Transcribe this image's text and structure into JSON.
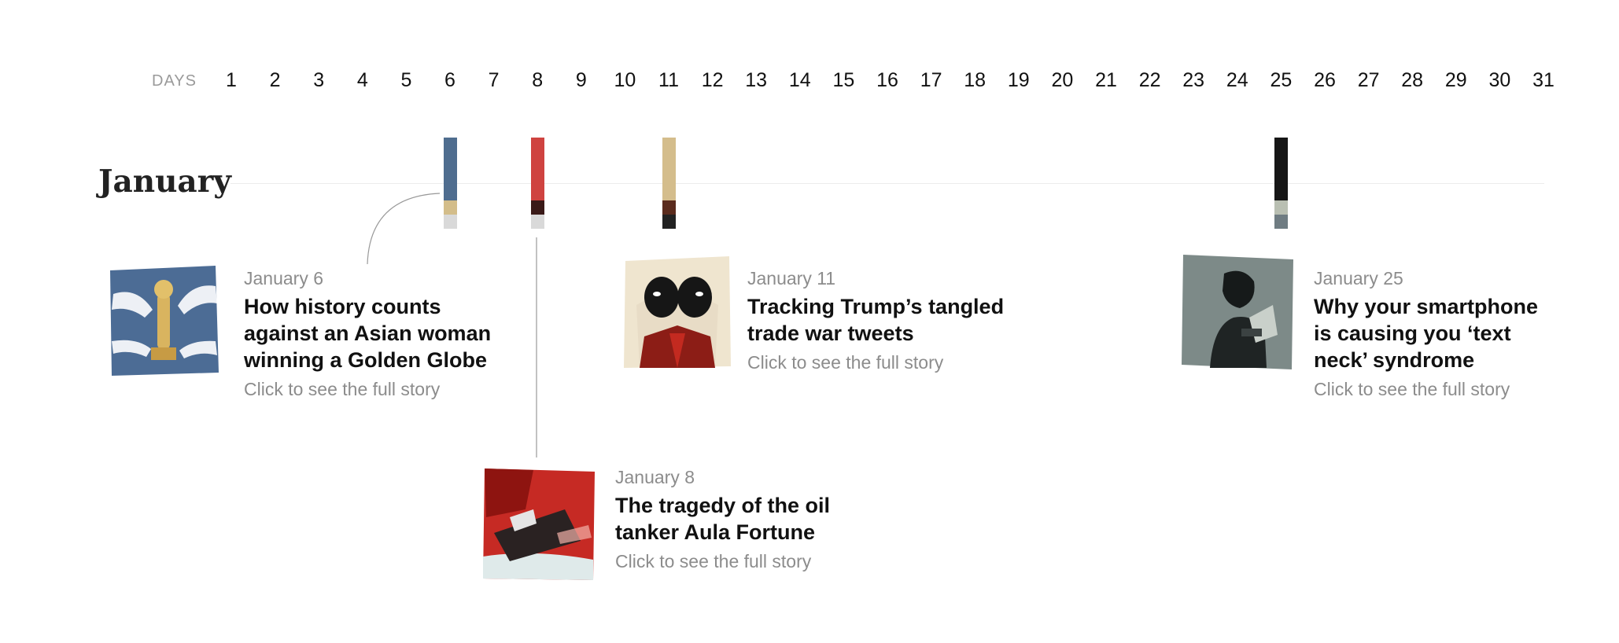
{
  "axis": {
    "label": "DAYS",
    "days": [
      "1",
      "2",
      "3",
      "4",
      "5",
      "6",
      "7",
      "8",
      "9",
      "10",
      "11",
      "12",
      "13",
      "14",
      "15",
      "16",
      "17",
      "18",
      "19",
      "20",
      "21",
      "22",
      "23",
      "24",
      "25",
      "26",
      "27",
      "28",
      "29",
      "30",
      "31"
    ]
  },
  "month": "January",
  "markers": [
    {
      "day": 6,
      "colors": [
        "#4f6d8f",
        "#d3bd8a",
        "#d9d9d9"
      ],
      "weights": [
        80,
        18,
        18
      ]
    },
    {
      "day": 8,
      "colors": [
        "#cf4340",
        "#3a1a18",
        "#d9d9d9"
      ],
      "weights": [
        80,
        18,
        18
      ]
    },
    {
      "day": 11,
      "colors": [
        "#d4bd8c",
        "#5a2b1d",
        "#222222"
      ],
      "weights": [
        80,
        18,
        18
      ]
    },
    {
      "day": 25,
      "colors": [
        "#161616",
        "#b9bfb2",
        "#6f7c82"
      ],
      "weights": [
        80,
        18,
        18
      ]
    }
  ],
  "stories": [
    {
      "date": "January 6",
      "title_lines": [
        "How history counts",
        "against an Asian woman",
        "winning a Golden Globe"
      ],
      "link": "Click to see the full story",
      "thumb": "golden-globe-illustration"
    },
    {
      "date": "January 8",
      "title_lines": [
        "The tragedy of the oil",
        "tanker Aula Fortune"
      ],
      "link": "Click to see the full story",
      "thumb": "sinking-tanker-illustration"
    },
    {
      "date": "January 11",
      "title_lines": [
        "Tracking Trump’s tangled",
        "trade war tweets"
      ],
      "link": "Click to see the full story",
      "thumb": "masked-face-illustration"
    },
    {
      "date": "January 25",
      "title_lines": [
        "Why your smartphone",
        "is causing you ‘text",
        "neck’ syndrome"
      ],
      "link": "Click to see the full story",
      "thumb": "smartphone-user-illustration"
    }
  ],
  "colors": {
    "muted": "#8c8c8c",
    "title": "#111111"
  }
}
